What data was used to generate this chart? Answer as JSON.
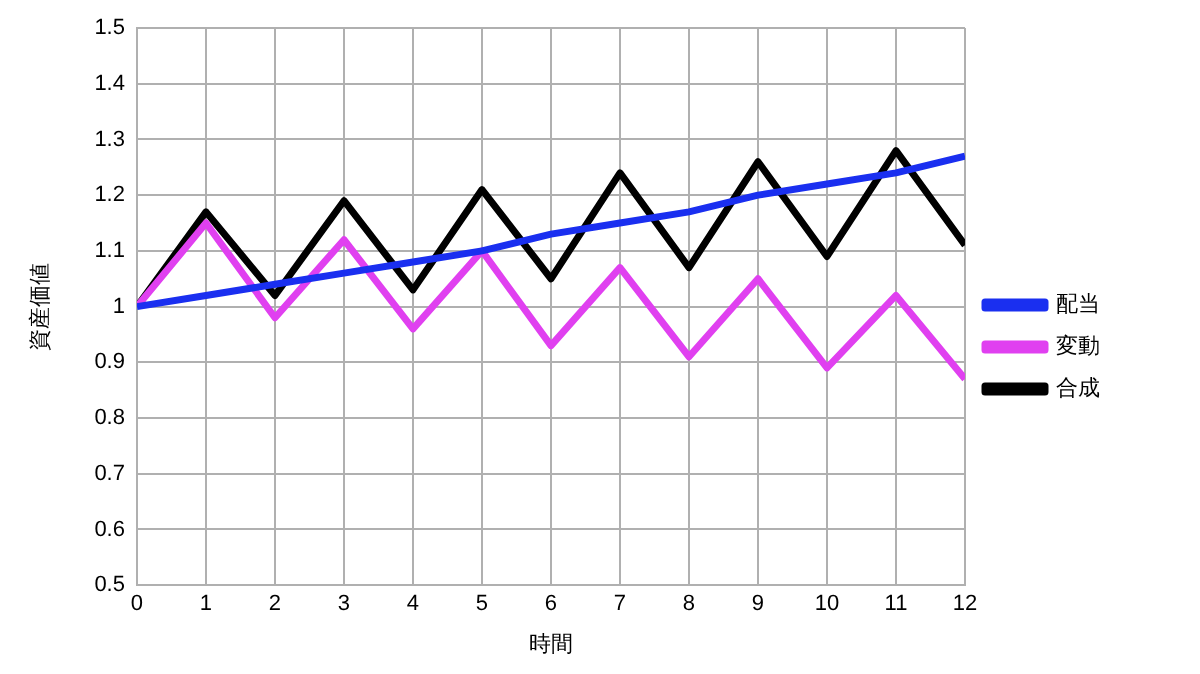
{
  "chart_data": {
    "type": "line",
    "xlabel": "時間",
    "ylabel": "資産価値",
    "x": [
      0,
      1,
      2,
      3,
      4,
      5,
      6,
      7,
      8,
      9,
      10,
      11,
      12
    ],
    "xlim": [
      0,
      12
    ],
    "xticks": [
      0,
      1,
      2,
      3,
      4,
      5,
      6,
      7,
      8,
      9,
      10,
      11,
      12
    ],
    "ylim": [
      0.5,
      1.5
    ],
    "yticks": [
      0.5,
      0.6,
      0.7,
      0.8,
      0.9,
      1,
      1.1,
      1.2,
      1.3,
      1.4,
      1.5
    ],
    "grid": true,
    "legend": "right",
    "marker": "none",
    "line_style": "solid",
    "series": [
      {
        "name": "配当",
        "color": "#1a2ff0",
        "values": [
          1,
          1.02,
          1.04,
          1.06,
          1.08,
          1.1,
          1.13,
          1.15,
          1.17,
          1.2,
          1.22,
          1.24,
          1.27
        ]
      },
      {
        "name": "変動",
        "color": "#e040f0",
        "values": [
          1,
          1.15,
          0.98,
          1.12,
          0.96,
          1.1,
          0.93,
          1.07,
          0.91,
          1.05,
          0.89,
          1.02,
          0.87
        ]
      },
      {
        "name": "合成",
        "color": "#000000",
        "values": [
          1,
          1.17,
          1.02,
          1.19,
          1.03,
          1.21,
          1.05,
          1.24,
          1.07,
          1.26,
          1.09,
          1.28,
          1.11
        ]
      }
    ]
  }
}
